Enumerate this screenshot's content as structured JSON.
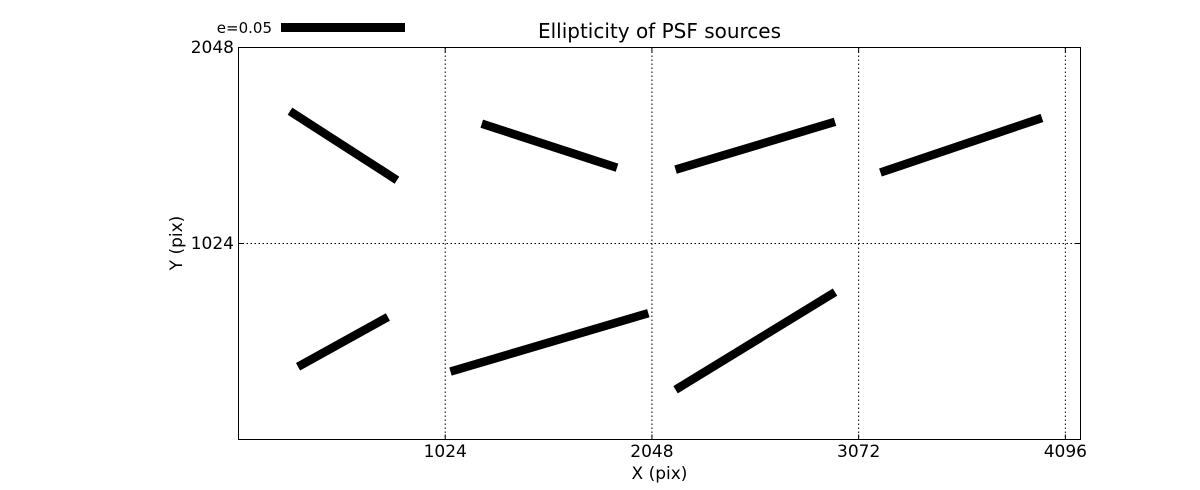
{
  "colors": {
    "foreground": "#000000",
    "background": "#ffffff"
  },
  "chart_data": {
    "type": "line-segments",
    "description": "ellipticity whisker / quiver plot of PSF sources",
    "title": "Ellipticity of PSF sources",
    "xlabel": "X (pix)",
    "ylabel": "Y (pix)",
    "xlim": [
      0,
      4171
    ],
    "ylim": [
      0,
      2048
    ],
    "xticks": [
      1024,
      2048,
      3072,
      4096
    ],
    "yticks": [
      1024,
      2048
    ],
    "grid": "dotted",
    "tick_direction": "in",
    "legend": {
      "label": "e=0.05",
      "position": "upper left, above axes",
      "bar_color": "#000000"
    },
    "segment_color": "#000000",
    "segments": [
      {
        "x1": 255,
        "y1": 1715,
        "x2": 785,
        "y2": 1355
      },
      {
        "x1": 1205,
        "y1": 1650,
        "x2": 1875,
        "y2": 1420
      },
      {
        "x1": 2165,
        "y1": 1410,
        "x2": 2955,
        "y2": 1660
      },
      {
        "x1": 3180,
        "y1": 1395,
        "x2": 3980,
        "y2": 1680
      },
      {
        "x1": 295,
        "y1": 380,
        "x2": 740,
        "y2": 640
      },
      {
        "x1": 1050,
        "y1": 355,
        "x2": 2030,
        "y2": 660
      },
      {
        "x1": 2165,
        "y1": 260,
        "x2": 2955,
        "y2": 770
      }
    ]
  }
}
